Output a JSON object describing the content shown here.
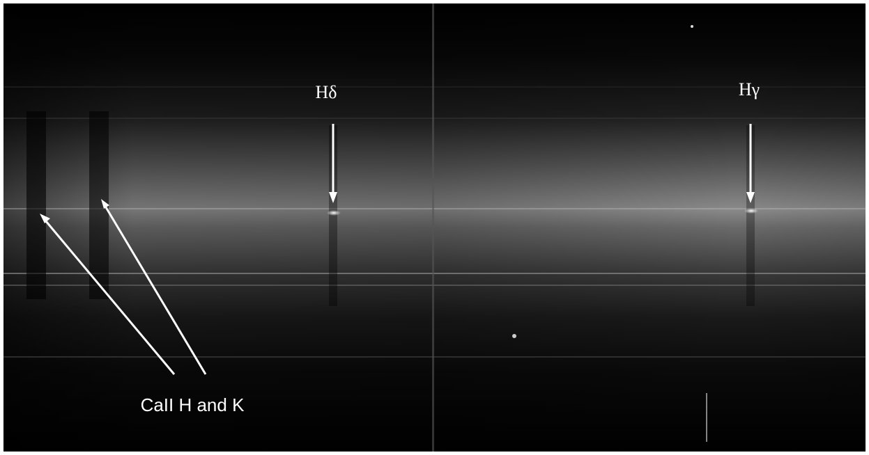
{
  "annotations": [
    {
      "label": "Hδ"
    },
    {
      "label": "Hγ"
    },
    {
      "label": "CaII H and K"
    }
  ]
}
